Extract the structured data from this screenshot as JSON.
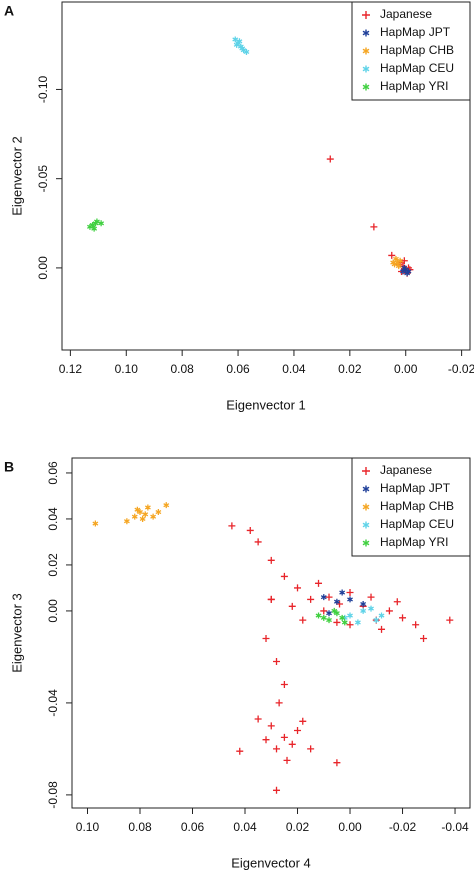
{
  "chart_data": [
    {
      "type": "scatter",
      "panel_label": "A",
      "xlabel": "Eigenvector 1",
      "ylabel": "Eigenvector 2",
      "xlim": [
        0.123,
        -0.023
      ],
      "ylim": [
        0.046,
        -0.149
      ],
      "xticks": [
        0.12,
        {
          "value": 0.1,
          "label": "0.10"
        },
        0.08,
        0.06,
        0.04,
        0.02,
        {
          "value": 0,
          "label": "0.00"
        },
        -0.02
      ],
      "yticks": [
        {
          "value": -0.1,
          "label": "-0.10"
        },
        -0.05,
        {
          "value": 0,
          "label": "0.00"
        }
      ],
      "legend": "topright",
      "series": [
        {
          "name": "Japanese",
          "color": "#e8252a",
          "marker": "plus",
          "x": [
            0.027,
            0.0114,
            0.005,
            0.002,
            0.001,
            0.0,
            -0.001,
            0.0015,
            -0.0005,
            0.0025,
            0.0005,
            -0.0015
          ],
          "values": [
            -0.061,
            -0.023,
            -0.007,
            -0.003,
            -0.001,
            0.001,
            0.0,
            0.002,
            0.003,
            -0.002,
            -0.004,
            0.001
          ]
        },
        {
          "name": "HapMap JPT",
          "color": "#1f3f99",
          "marker": "star",
          "x": [
            0.0,
            -0.001,
            0.0005,
            -0.0005,
            0.001
          ],
          "values": [
            0.001,
            0.002,
            0.0,
            0.003,
            0.002
          ]
        },
        {
          "name": "HapMap CHB",
          "color": "#f5a623",
          "marker": "star",
          "x": [
            0.003,
            0.004,
            0.002,
            0.0035,
            0.0025,
            0.0045
          ],
          "values": [
            -0.003,
            -0.002,
            -0.004,
            -0.005,
            -0.001,
            -0.003
          ]
        },
        {
          "name": "HapMap CEU",
          "color": "#5fd3e8",
          "marker": "star",
          "x": [
            0.061,
            0.06,
            0.059,
            0.058,
            0.0605,
            0.0595,
            0.057,
            0.0585
          ],
          "values": [
            -0.128,
            -0.126,
            -0.124,
            -0.122,
            -0.125,
            -0.127,
            -0.121,
            -0.123
          ]
        },
        {
          "name": "HapMap YRI",
          "color": "#40d040",
          "marker": "star",
          "x": [
            0.112,
            0.111,
            0.113,
            0.1105,
            0.1115,
            0.112,
            0.109
          ],
          "values": [
            -0.024,
            -0.025,
            -0.023,
            -0.026,
            -0.022,
            -0.024,
            -0.025
          ]
        }
      ]
    },
    {
      "type": "scatter",
      "panel_label": "B",
      "xlabel": "Eigenvector 4",
      "ylabel": "Eigenvector 3",
      "xlim": [
        0.1059,
        -0.0457
      ],
      "ylim": [
        -0.0857,
        0.0665
      ],
      "xticks": [
        {
          "value": 0.1,
          "label": "0.10"
        },
        0.08,
        0.06,
        0.04,
        0.02,
        {
          "value": 0,
          "label": "0.00"
        },
        -0.02,
        -0.04
      ],
      "yticks": [
        0.06,
        0.04,
        0.02,
        {
          "value": 0,
          "label": "0.00"
        },
        -0.04,
        -0.08
      ],
      "legend": "topright",
      "series": [
        {
          "name": "Japanese",
          "color": "#e8252a",
          "marker": "plus",
          "x": [
            0.02,
            0.015,
            0.01,
            0.005,
            0.0,
            -0.005,
            -0.01,
            -0.015,
            -0.02,
            -0.025,
            0.012,
            0.018,
            0.008,
            -0.008,
            -0.012,
            0.0,
            0.004,
            -0.018,
            -0.028,
            0.022,
            0.045,
            0.038,
            0.035,
            0.03,
            0.025,
            0.03,
            0.032,
            0.028,
            0.025,
            0.027,
            0.03,
            0.025,
            0.02,
            0.028,
            0.022,
            0.018,
            0.032,
            0.024,
            0.015,
            0.035,
            0.042,
            0.028,
            0.005,
            -0.038,
            0.03
          ],
          "values": [
            0.01,
            0.005,
            0.0,
            -0.005,
            0.008,
            0.002,
            -0.004,
            0.0,
            -0.003,
            -0.006,
            0.012,
            -0.004,
            0.006,
            0.006,
            -0.008,
            -0.006,
            0.003,
            0.004,
            -0.012,
            0.002,
            0.037,
            0.035,
            0.03,
            0.022,
            0.015,
            0.005,
            -0.012,
            -0.022,
            -0.032,
            -0.04,
            -0.05,
            -0.055,
            -0.052,
            -0.06,
            -0.058,
            -0.048,
            -0.056,
            -0.065,
            -0.06,
            -0.047,
            -0.061,
            -0.078,
            -0.066,
            -0.004,
            0.005
          ]
        },
        {
          "name": "HapMap JPT",
          "color": "#1f3f99",
          "marker": "star",
          "x": [
            0.01,
            0.005,
            0.0,
            -0.005,
            0.008,
            0.003
          ],
          "values": [
            0.006,
            0.004,
            0.005,
            0.003,
            -0.001,
            0.008
          ]
        },
        {
          "name": "HapMap CHB",
          "color": "#f5a623",
          "marker": "star",
          "x": [
            0.097,
            0.085,
            0.082,
            0.08,
            0.078,
            0.077,
            0.075,
            0.079,
            0.081,
            0.073,
            0.07
          ],
          "values": [
            0.038,
            0.039,
            0.041,
            0.043,
            0.042,
            0.045,
            0.041,
            0.04,
            0.044,
            0.043,
            0.046
          ]
        },
        {
          "name": "HapMap CEU",
          "color": "#5fd3e8",
          "marker": "star",
          "x": [
            0.0,
            -0.005,
            -0.01,
            -0.003,
            -0.008,
            0.002,
            -0.012
          ],
          "values": [
            -0.002,
            0.0,
            -0.004,
            -0.005,
            0.001,
            -0.003,
            -0.002
          ]
        },
        {
          "name": "HapMap YRI",
          "color": "#40d040",
          "marker": "star",
          "x": [
            0.012,
            0.008,
            0.005,
            0.002,
            0.01,
            0.006,
            0.003
          ],
          "values": [
            -0.002,
            -0.004,
            -0.001,
            -0.005,
            -0.003,
            0.0,
            -0.003
          ]
        }
      ]
    }
  ]
}
